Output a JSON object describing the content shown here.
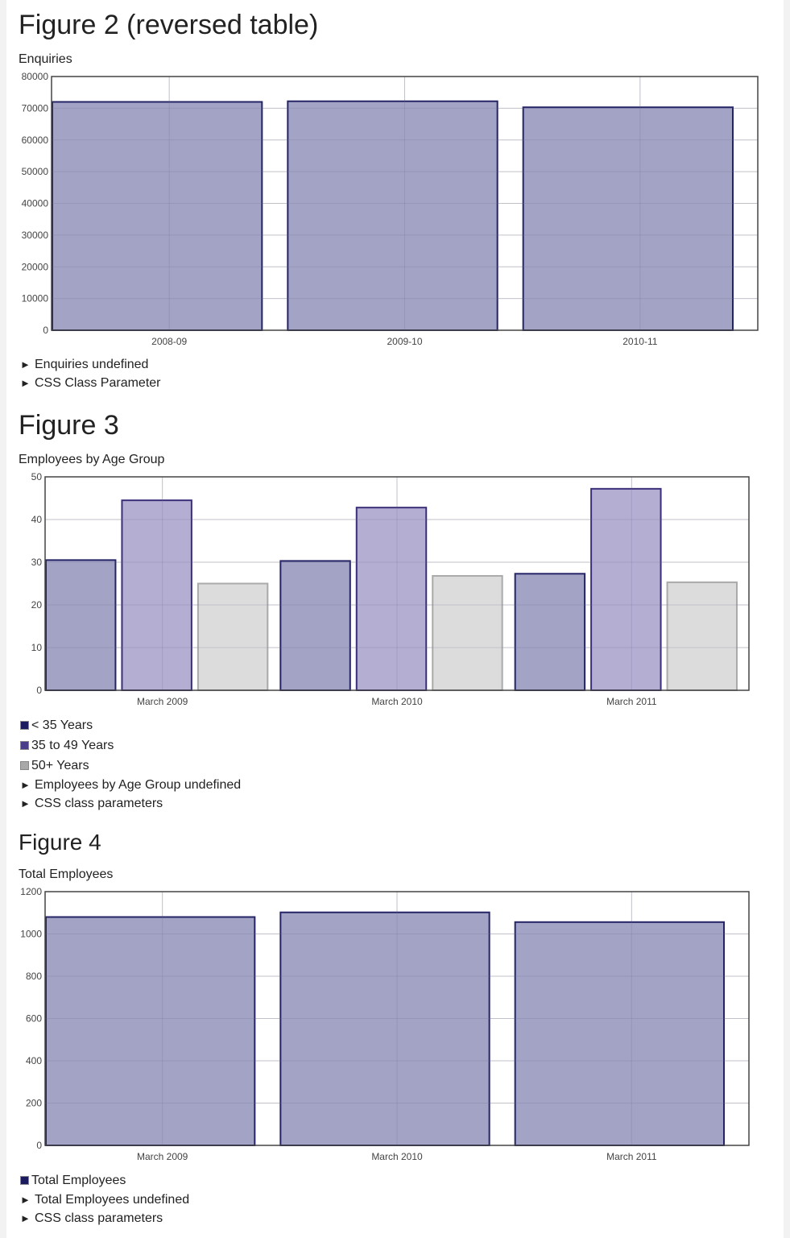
{
  "figures": [
    {
      "heading": "Figure 2 (reversed table)",
      "chart_title": "Enquiries",
      "toggles": [
        "Enquiries undefined",
        "CSS Class Parameter"
      ],
      "legend": []
    },
    {
      "heading": "Figure 3",
      "chart_title": "Employees by Age Group",
      "toggles": [
        "Employees by Age Group undefined",
        "CSS class parameters"
      ],
      "legend": [
        {
          "label": "< 35 Years",
          "color": "#1c1a5e"
        },
        {
          "label": "35 to 49 Years",
          "color": "#4a3d8a"
        },
        {
          "label": "50+ Years",
          "color": "#a8a8a8"
        }
      ]
    },
    {
      "heading": "Figure 4",
      "chart_title": "Total Employees",
      "toggles": [
        "Total Employees undefined",
        "CSS class parameters"
      ],
      "legend": [
        {
          "label": "Total Employees",
          "color": "#1c1a5e"
        }
      ]
    }
  ],
  "toggle_icon": "triangle-right-icon",
  "chart_data": [
    {
      "type": "bar",
      "title": "Enquiries",
      "categories": [
        "2008-09",
        "2009-10",
        "2010-11"
      ],
      "series": [
        {
          "values": [
            72000,
            72200,
            70300
          ]
        }
      ],
      "ylim": [
        0,
        80000
      ],
      "yticks": [
        0,
        10000,
        20000,
        30000,
        40000,
        50000,
        60000,
        70000,
        80000
      ],
      "grid": true,
      "fill": "#a3a3c5",
      "stroke": "#252466"
    },
    {
      "type": "bar",
      "title": "Employees by Age Group",
      "categories": [
        "March 2009",
        "March 2010",
        "March 2011"
      ],
      "series": [
        {
          "name": "< 35 Years",
          "values": [
            30.5,
            30.3,
            27.3
          ],
          "fill": "#a3a3c5",
          "stroke": "#252466"
        },
        {
          "name": "35 to 49 Years",
          "values": [
            44.5,
            42.8,
            47.2
          ],
          "fill": "#b5aed3",
          "stroke": "#3b2f7a"
        },
        {
          "name": "50+ Years",
          "values": [
            25.0,
            26.8,
            25.3
          ],
          "fill": "#dcdcdc",
          "stroke": "#aaaaaa"
        }
      ],
      "ylim": [
        0,
        50
      ],
      "yticks": [
        0,
        10,
        20,
        30,
        40,
        50
      ],
      "grid": true
    },
    {
      "type": "bar",
      "title": "Total Employees",
      "categories": [
        "March 2009",
        "March 2010",
        "March 2011"
      ],
      "series": [
        {
          "name": "Total Employees",
          "values": [
            1080,
            1102,
            1056
          ]
        }
      ],
      "ylim": [
        0,
        1200
      ],
      "yticks": [
        0,
        200,
        400,
        600,
        800,
        1000,
        1200
      ],
      "grid": true,
      "fill": "#a3a3c5",
      "stroke": "#252466"
    }
  ]
}
